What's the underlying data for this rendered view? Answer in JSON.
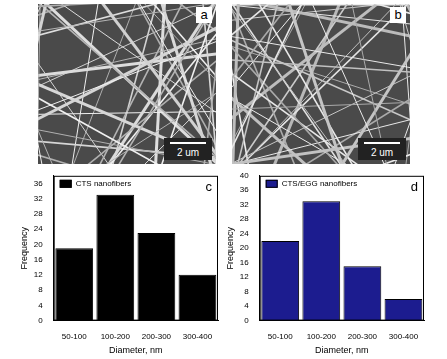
{
  "images": [
    {
      "panel_label": "a",
      "scale_bar": "2 um"
    },
    {
      "panel_label": "b",
      "scale_bar": "2 um"
    }
  ],
  "chart_data": [
    {
      "type": "bar",
      "panel_label": "c",
      "x_label": "Diameter, nm",
      "y_label": "Frequency",
      "categories": [
        "50-100",
        "100-200",
        "200-300",
        "300-400"
      ],
      "series": [
        {
          "name": "CTS nanofibers",
          "color": "#000000",
          "values": [
            19,
            33,
            23,
            12
          ]
        }
      ],
      "ylim": [
        0,
        38
      ],
      "yticks": [
        0,
        4,
        8,
        12,
        16,
        20,
        24,
        28,
        32,
        36
      ],
      "grid": false,
      "legend": "upper left"
    },
    {
      "type": "bar",
      "panel_label": "d",
      "x_label": "Diameter, nm",
      "y_label": "Frequency",
      "categories": [
        "50-100",
        "100-200",
        "200-300",
        "300-400"
      ],
      "series": [
        {
          "name": "CTS/EGG nanofibers",
          "color": "#1c1c8f",
          "values": [
            22,
            33,
            15,
            6
          ]
        }
      ],
      "ylim": [
        0,
        40
      ],
      "yticks": [
        0,
        4,
        8,
        12,
        16,
        20,
        24,
        28,
        32,
        36,
        40
      ],
      "grid": false,
      "legend": "upper left"
    }
  ]
}
